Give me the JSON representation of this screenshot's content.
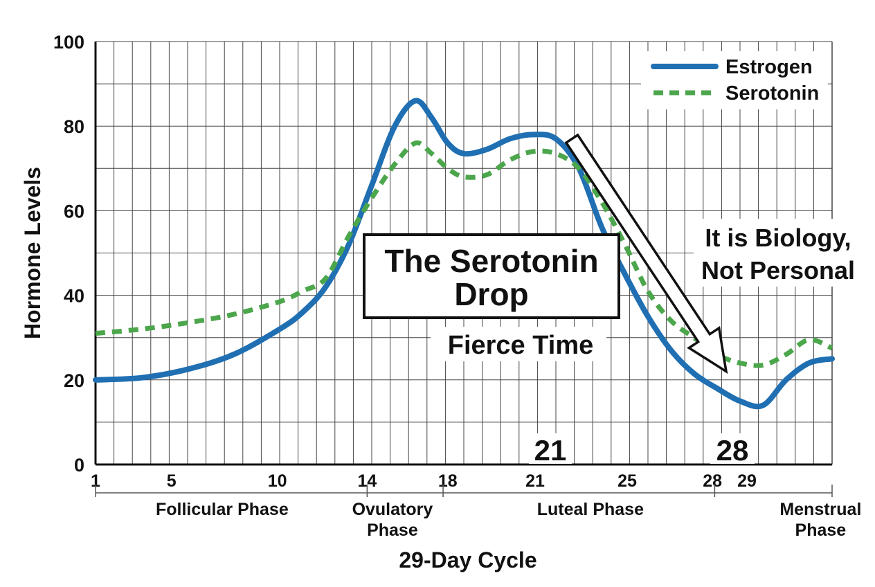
{
  "chart_data": {
    "type": "line",
    "ylabel": "Hormone Levels",
    "xlabel": "29-Day Cycle",
    "xlim": [
      1,
      33
    ],
    "ylim": [
      0,
      100
    ],
    "y_ticks": [
      "0",
      "20",
      "40",
      "60",
      "80",
      "100"
    ],
    "x_ticks": [
      {
        "x": 1,
        "label": "1"
      },
      {
        "x": 4.3,
        "label": "5"
      },
      {
        "x": 8.9,
        "label": "10"
      },
      {
        "x": 12.8,
        "label": "14"
      },
      {
        "x": 16.3,
        "label": "18"
      },
      {
        "x": 20.1,
        "label": "21"
      },
      {
        "x": 24.1,
        "label": "25"
      },
      {
        "x": 27.8,
        "label": "28"
      },
      {
        "x": 29.3,
        "label": "29"
      }
    ],
    "grid": true,
    "legend_position": "top-right",
    "series": [
      {
        "name": "Estrogen",
        "color": "#1f6fb2",
        "style": "solid",
        "points": [
          [
            1,
            20
          ],
          [
            3,
            20.5
          ],
          [
            5,
            22.5
          ],
          [
            7,
            26
          ],
          [
            9,
            32
          ],
          [
            10,
            36
          ],
          [
            11,
            42
          ],
          [
            12,
            52
          ],
          [
            13,
            66
          ],
          [
            14,
            80
          ],
          [
            14.9,
            86
          ],
          [
            15.6,
            82
          ],
          [
            16.3,
            76
          ],
          [
            17,
            73.5
          ],
          [
            18,
            74.5
          ],
          [
            19,
            77
          ],
          [
            20,
            78
          ],
          [
            21,
            77
          ],
          [
            22,
            70
          ],
          [
            23,
            56
          ],
          [
            24,
            45
          ],
          [
            25,
            35
          ],
          [
            26,
            27
          ],
          [
            27,
            21.5
          ],
          [
            28,
            18
          ],
          [
            29,
            15
          ],
          [
            30,
            14
          ],
          [
            31,
            20
          ],
          [
            32,
            24
          ],
          [
            33,
            25
          ]
        ]
      },
      {
        "name": "Serotonin",
        "color": "#4ca64c",
        "style": "dashed",
        "points": [
          [
            1,
            31
          ],
          [
            3,
            32
          ],
          [
            5,
            33.5
          ],
          [
            7,
            35.5
          ],
          [
            9,
            38.5
          ],
          [
            10,
            41
          ],
          [
            11,
            44
          ],
          [
            12,
            54
          ],
          [
            13,
            63
          ],
          [
            14,
            71
          ],
          [
            14.9,
            76
          ],
          [
            15.6,
            73.5
          ],
          [
            16.3,
            70
          ],
          [
            17,
            68
          ],
          [
            18,
            68.5
          ],
          [
            19,
            72
          ],
          [
            20,
            74
          ],
          [
            21,
            73.5
          ],
          [
            22,
            70
          ],
          [
            23,
            62
          ],
          [
            24,
            52
          ],
          [
            25,
            41
          ],
          [
            26,
            34
          ],
          [
            27,
            30
          ],
          [
            28,
            26
          ],
          [
            29,
            24
          ],
          [
            30,
            23.5
          ],
          [
            31,
            26
          ],
          [
            32,
            29.5
          ],
          [
            33,
            27.5
          ]
        ]
      }
    ],
    "phases": [
      {
        "label": "Follicular Phase",
        "x": 6.5
      },
      {
        "label_lines": [
          "Ovulatory",
          "Phase"
        ],
        "x": 13.9
      },
      {
        "label": "Luteal Phase",
        "x": 22.5
      },
      {
        "label_lines": [
          "Menstrual",
          "Phase"
        ],
        "x": 32.5
      }
    ],
    "phase_separators": [
      1,
      12.8,
      16.1,
      27.9,
      33
    ],
    "annotations": {
      "box_title_lines": [
        "The Serotonin",
        "Drop"
      ],
      "subtitle": "Fierce Time",
      "side_text_lines": [
        "It is Biology,",
        "Not Personal"
      ],
      "day_marker_1": "21",
      "day_marker_2": "28",
      "arrow_from": [
        21.7,
        77
      ],
      "arrow_to": [
        28.4,
        22
      ]
    }
  }
}
